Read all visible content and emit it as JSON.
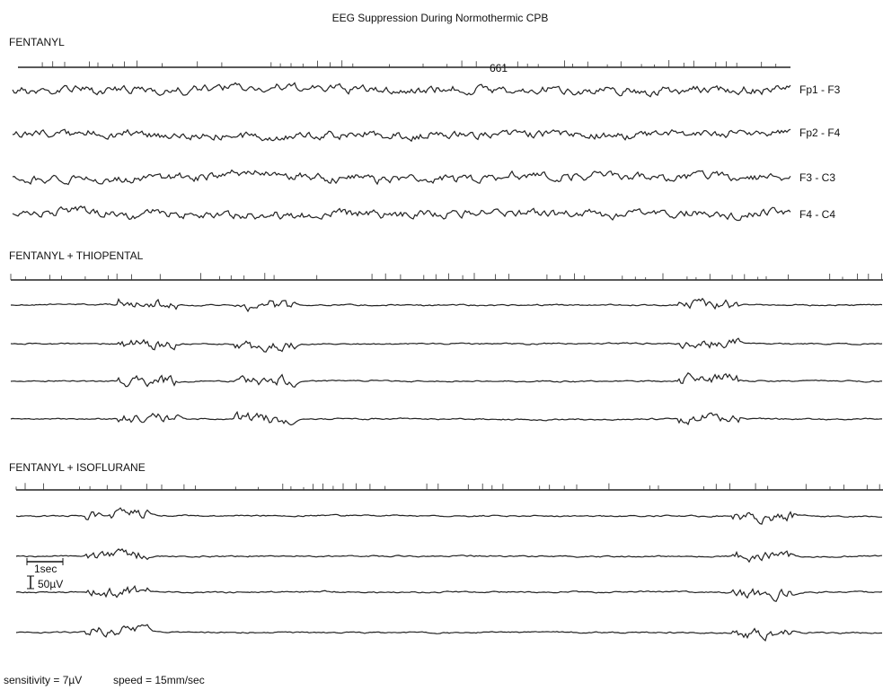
{
  "title": "EEG  Suppression  During  Normothermic  CPB",
  "sections": [
    {
      "label": "FENTANYL",
      "channels": [
        "Fp1 - F3",
        "Fp2 - F4",
        "F3 - C3",
        "F4 - C4"
      ],
      "marker": "661"
    },
    {
      "label": "FENTANYL + THIOPENTAL"
    },
    {
      "label": "FENTANYL + ISOFLURANE"
    }
  ],
  "scale": {
    "time": "1sec",
    "amplitude": "50µV"
  },
  "footer": {
    "sensitivity": "sensitivity = 7µV",
    "speed": "speed = 15mm/sec"
  }
}
